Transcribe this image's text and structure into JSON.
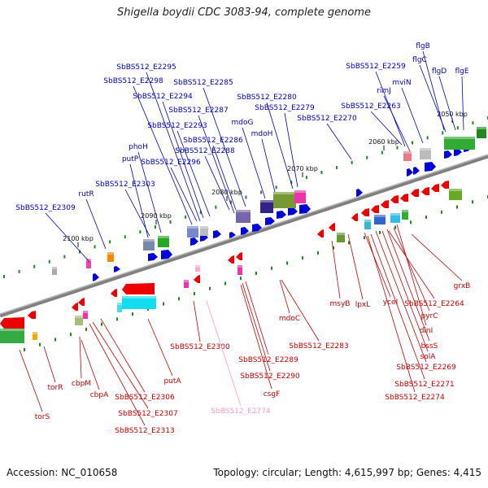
{
  "title": "Shigella boydii CDC 3083-94, complete genome",
  "footer": {
    "accession": "Accession: NC_010658",
    "topology": "Topology: circular; Length: 4,615,997 bp; Genes: 4,415"
  },
  "colors": {
    "top_strand_label": "#0000cc",
    "bottom_strand_label": "#cc0000",
    "pseudo_label": "#ff99cc",
    "backbone": "#808080",
    "forward_feature": "#0000dd",
    "reverse_feature": "#ee0000",
    "marker": "#228822"
  },
  "scale_ticks": [
    "2050 kbp",
    "2060 kbp",
    "2070 kbp",
    "2080 kbp",
    "2090 kbp",
    "2100 kbp"
  ],
  "top_labels": [
    "flgB",
    "flgC",
    "flgD",
    "flgE",
    "SbBS512_E2259",
    "rimJ",
    "mviN",
    "SbBS512_E2263",
    "SbBS512_E2270",
    "SbBS512_E2280",
    "SbBS512_E2279",
    "mdoG",
    "mdoH",
    "SbBS512_E2295",
    "SbBS512_E2298",
    "SbBS512_E2285",
    "SbBS512_E2294",
    "SbBS512_E2287",
    "SbBS512_E2293",
    "SbBS512_E2286",
    "SbBS512_E2288",
    "phoH",
    "putP",
    "SbBS512_E2296",
    "SbBS512_E2303",
    "rutR",
    "SbBS512_E2309"
  ],
  "bottom_labels": [
    "grxB",
    "msyB",
    "lpxL",
    "yceI",
    "SbBS512_E2264",
    "pyrC",
    "dinI",
    "bssS",
    "solA",
    "SbBS512_E2269",
    "SbBS512_E2271",
    "SbBS512_E2274",
    "mdoC",
    "SbBS512_E2283",
    "SbBS512_E2289",
    "SbBS512_E2290",
    "csgF",
    "SbBS512_E2300",
    "SbBS512_E2774",
    "putA",
    "SbBS512_E2306",
    "SbBS512_E2307",
    "SbBS512_E2313",
    "cbpA",
    "cbpM",
    "torR",
    "torS"
  ]
}
